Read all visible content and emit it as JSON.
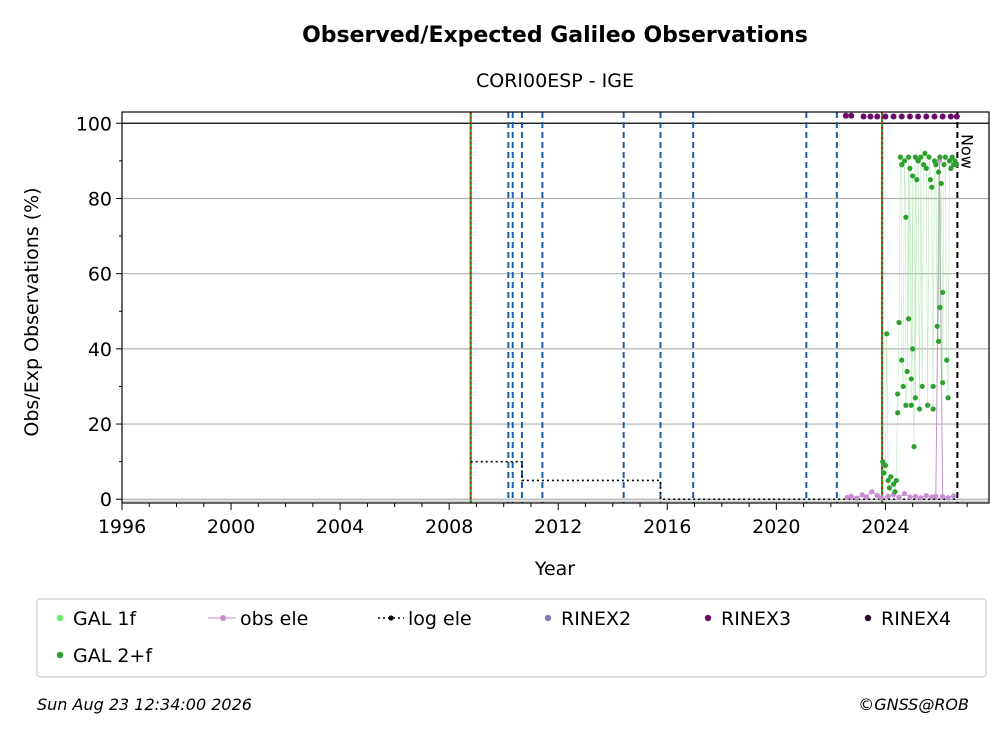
{
  "chart_data": {
    "type": "scatter",
    "title": "Observed/Expected Galileo Observations",
    "subtitle": "CORI00ESP - IGE",
    "xlabel": "Year",
    "ylabel": "Obs/Exp Observations (%)",
    "xlim": [
      1996,
      2027.8
    ],
    "ylim": [
      -1,
      103
    ],
    "xticks": [
      "1996",
      "2000",
      "2004",
      "2008",
      "2012",
      "2016",
      "2020",
      "2024"
    ],
    "yticks": [
      "0",
      "20",
      "40",
      "60",
      "80",
      "100"
    ],
    "grid": "horizontal",
    "legend_position": "bottom",
    "legend": [
      {
        "label": "GAL 1f",
        "color": "#66ee66",
        "marker": "dot"
      },
      {
        "label": "obs ele",
        "color": "#c58fd0",
        "marker": "line-dot"
      },
      {
        "label": "log ele",
        "color": "#000000",
        "marker": "dotted-line"
      },
      {
        "label": "RINEX2",
        "color": "#8677c0",
        "marker": "dot"
      },
      {
        "label": "RINEX3",
        "color": "#6a0a6a",
        "marker": "dot"
      },
      {
        "label": "RINEX4",
        "color": "#2a0a2a",
        "marker": "dot"
      },
      {
        "label": "GAL 2+f",
        "color": "#2ca02c",
        "marker": "dot"
      }
    ],
    "now_label": "Now",
    "now_x": 2026.64,
    "red_vlines": [
      2008.79,
      2023.88
    ],
    "blue_vlines": [
      2010.17,
      2010.33,
      2010.67,
      2011.42,
      2014.4,
      2015.75,
      2016.95,
      2021.1,
      2022.22
    ],
    "log_ele": [
      {
        "x": 2008.79,
        "y": 10
      },
      {
        "x": 2010.67,
        "y": 10
      },
      {
        "x": 2010.67,
        "y": 5
      },
      {
        "x": 2015.75,
        "y": 5
      },
      {
        "x": 2015.75,
        "y": 0
      },
      {
        "x": 2026.64,
        "y": 0
      }
    ],
    "rinex3_points": [
      {
        "x": 2022.55,
        "y": 102
      },
      {
        "x": 2022.75,
        "y": 102
      },
      {
        "x": 2023.2,
        "y": 101.8
      },
      {
        "x": 2023.45,
        "y": 101.8
      },
      {
        "x": 2023.7,
        "y": 101.8
      },
      {
        "x": 2024.0,
        "y": 101.8
      },
      {
        "x": 2024.3,
        "y": 101.8
      },
      {
        "x": 2024.6,
        "y": 101.8
      },
      {
        "x": 2024.9,
        "y": 101.8
      },
      {
        "x": 2025.2,
        "y": 101.8
      },
      {
        "x": 2025.5,
        "y": 101.8
      },
      {
        "x": 2025.8,
        "y": 101.8
      },
      {
        "x": 2026.1,
        "y": 101.8
      },
      {
        "x": 2026.4,
        "y": 101.8
      },
      {
        "x": 2026.62,
        "y": 101.8
      }
    ],
    "gal_2f_points": [
      {
        "x": 2023.9,
        "y": 10
      },
      {
        "x": 2023.95,
        "y": 7
      },
      {
        "x": 2024.0,
        "y": 9
      },
      {
        "x": 2024.05,
        "y": 44
      },
      {
        "x": 2024.1,
        "y": 5
      },
      {
        "x": 2024.15,
        "y": 3
      },
      {
        "x": 2024.2,
        "y": 6
      },
      {
        "x": 2024.3,
        "y": 4
      },
      {
        "x": 2024.35,
        "y": 2
      },
      {
        "x": 2024.4,
        "y": 5
      },
      {
        "x": 2024.45,
        "y": 28
      },
      {
        "x": 2024.45,
        "y": 23
      },
      {
        "x": 2024.5,
        "y": 47
      },
      {
        "x": 2024.55,
        "y": 91
      },
      {
        "x": 2024.6,
        "y": 89
      },
      {
        "x": 2024.6,
        "y": 37
      },
      {
        "x": 2024.65,
        "y": 30
      },
      {
        "x": 2024.7,
        "y": 90
      },
      {
        "x": 2024.75,
        "y": 75
      },
      {
        "x": 2024.75,
        "y": 25
      },
      {
        "x": 2024.8,
        "y": 34
      },
      {
        "x": 2024.85,
        "y": 91
      },
      {
        "x": 2024.85,
        "y": 48
      },
      {
        "x": 2024.9,
        "y": 88
      },
      {
        "x": 2024.95,
        "y": 25
      },
      {
        "x": 2024.95,
        "y": 32
      },
      {
        "x": 2025.0,
        "y": 86
      },
      {
        "x": 2025.0,
        "y": 40
      },
      {
        "x": 2025.05,
        "y": 14
      },
      {
        "x": 2025.1,
        "y": 91
      },
      {
        "x": 2025.1,
        "y": 27
      },
      {
        "x": 2025.15,
        "y": 85
      },
      {
        "x": 2025.2,
        "y": 90
      },
      {
        "x": 2025.25,
        "y": 24
      },
      {
        "x": 2025.3,
        "y": 91
      },
      {
        "x": 2025.35,
        "y": 30
      },
      {
        "x": 2025.4,
        "y": 89
      },
      {
        "x": 2025.45,
        "y": 92
      },
      {
        "x": 2025.5,
        "y": 88
      },
      {
        "x": 2025.55,
        "y": 25
      },
      {
        "x": 2025.6,
        "y": 91
      },
      {
        "x": 2025.65,
        "y": 85
      },
      {
        "x": 2025.7,
        "y": 83
      },
      {
        "x": 2025.75,
        "y": 24
      },
      {
        "x": 2025.75,
        "y": 30
      },
      {
        "x": 2025.8,
        "y": 90
      },
      {
        "x": 2025.85,
        "y": 89
      },
      {
        "x": 2025.9,
        "y": 46
      },
      {
        "x": 2025.95,
        "y": 87
      },
      {
        "x": 2025.95,
        "y": 42
      },
      {
        "x": 2026.0,
        "y": 91
      },
      {
        "x": 2026.0,
        "y": 51
      },
      {
        "x": 2026.05,
        "y": 84
      },
      {
        "x": 2026.1,
        "y": 55
      },
      {
        "x": 2026.1,
        "y": 31
      },
      {
        "x": 2026.15,
        "y": 89
      },
      {
        "x": 2026.2,
        "y": 91
      },
      {
        "x": 2026.25,
        "y": 37
      },
      {
        "x": 2026.3,
        "y": 27
      },
      {
        "x": 2026.35,
        "y": 90
      },
      {
        "x": 2026.4,
        "y": 88
      },
      {
        "x": 2026.45,
        "y": 91
      },
      {
        "x": 2026.5,
        "y": 89
      },
      {
        "x": 2026.55,
        "y": 90
      },
      {
        "x": 2026.6,
        "y": 89
      }
    ],
    "obs_ele_points": [
      {
        "x": 2022.6,
        "y": 0.5
      },
      {
        "x": 2022.75,
        "y": 0.8
      },
      {
        "x": 2022.95,
        "y": 0.3
      },
      {
        "x": 2023.15,
        "y": 1.2
      },
      {
        "x": 2023.3,
        "y": 0.6
      },
      {
        "x": 2023.5,
        "y": 2.0
      },
      {
        "x": 2023.7,
        "y": 1.0
      },
      {
        "x": 2023.85,
        "y": 0.4
      },
      {
        "x": 2024.1,
        "y": 0.8
      },
      {
        "x": 2024.3,
        "y": 1.2
      },
      {
        "x": 2024.5,
        "y": 0.5
      },
      {
        "x": 2024.7,
        "y": 1.5
      },
      {
        "x": 2024.9,
        "y": 0.6
      },
      {
        "x": 2025.1,
        "y": 0.8
      },
      {
        "x": 2025.3,
        "y": 0.4
      },
      {
        "x": 2025.5,
        "y": 1.0
      },
      {
        "x": 2025.7,
        "y": 0.6
      },
      {
        "x": 2025.85,
        "y": 0.8
      },
      {
        "x": 2025.98,
        "y": 90
      },
      {
        "x": 2026.1,
        "y": 0.7
      },
      {
        "x": 2026.3,
        "y": 0.4
      },
      {
        "x": 2026.5,
        "y": 0.9
      }
    ]
  },
  "footer": {
    "timestamp": "Sun Aug 23 12:34:00 2026",
    "credit": "©GNSS@ROB"
  }
}
